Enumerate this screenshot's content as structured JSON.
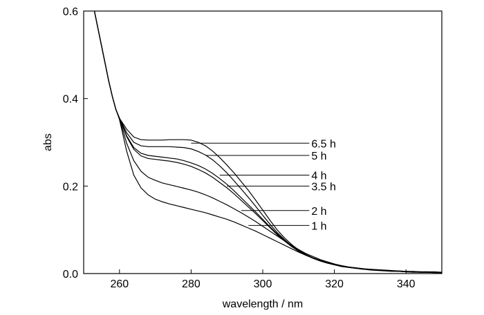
{
  "chart_data": {
    "type": "line",
    "title": "",
    "xlabel": "wavelength / nm",
    "ylabel": "abs",
    "xlim": [
      250,
      350
    ],
    "ylim": [
      0.0,
      0.6
    ],
    "xticks": [
      260,
      280,
      300,
      320,
      340
    ],
    "yticks": [
      0.0,
      0.2,
      0.4,
      0.6
    ],
    "xtick_labels": [
      "260",
      "280",
      "300",
      "320",
      "340"
    ],
    "ytick_labels": [
      "0.0",
      "0.2",
      "0.4",
      "0.6"
    ],
    "grid": false,
    "legend": "inline labels with leader lines",
    "series": [
      {
        "name": "6.5 h",
        "label_y": 0.298,
        "leader_x": 280,
        "x": [
          253,
          254,
          255,
          256,
          257,
          258,
          259,
          260,
          262,
          264,
          266,
          268,
          270,
          272,
          274,
          276,
          278,
          280,
          282,
          284,
          286,
          288,
          290,
          292,
          294,
          296,
          298,
          300,
          302,
          304,
          306,
          308,
          310,
          312,
          314,
          316,
          318,
          320,
          322,
          324,
          326,
          328,
          330,
          332,
          334,
          336,
          338,
          340,
          342,
          344,
          346,
          348,
          350
        ],
        "y": [
          0.6,
          0.56,
          0.52,
          0.48,
          0.44,
          0.405,
          0.375,
          0.355,
          0.33,
          0.312,
          0.306,
          0.305,
          0.305,
          0.305,
          0.306,
          0.306,
          0.306,
          0.305,
          0.3,
          0.292,
          0.28,
          0.265,
          0.248,
          0.23,
          0.21,
          0.19,
          0.168,
          0.145,
          0.122,
          0.1,
          0.082,
          0.067,
          0.054,
          0.044,
          0.036,
          0.03,
          0.025,
          0.021,
          0.018,
          0.015,
          0.013,
          0.011,
          0.01,
          0.009,
          0.008,
          0.007,
          0.006,
          0.005,
          0.005,
          0.004,
          0.004,
          0.004,
          0.003
        ]
      },
      {
        "name": "5 h",
        "label_y": 0.27,
        "leader_x": 284,
        "x": [
          253,
          254,
          255,
          256,
          257,
          258,
          259,
          260,
          262,
          264,
          266,
          268,
          270,
          272,
          274,
          276,
          278,
          280,
          282,
          284,
          286,
          288,
          290,
          292,
          294,
          296,
          298,
          300,
          302,
          304,
          306,
          308,
          310,
          312,
          314,
          316,
          318,
          320,
          322,
          324,
          326,
          328,
          330,
          332,
          334,
          336,
          338,
          340,
          342,
          344,
          346,
          348,
          350
        ],
        "y": [
          0.6,
          0.56,
          0.52,
          0.48,
          0.44,
          0.405,
          0.375,
          0.355,
          0.322,
          0.3,
          0.292,
          0.29,
          0.29,
          0.29,
          0.29,
          0.289,
          0.288,
          0.285,
          0.279,
          0.271,
          0.26,
          0.246,
          0.23,
          0.212,
          0.193,
          0.174,
          0.154,
          0.133,
          0.113,
          0.094,
          0.078,
          0.064,
          0.052,
          0.043,
          0.035,
          0.029,
          0.024,
          0.02,
          0.017,
          0.014,
          0.012,
          0.011,
          0.009,
          0.008,
          0.007,
          0.006,
          0.006,
          0.005,
          0.004,
          0.004,
          0.004,
          0.003,
          0.003
        ]
      },
      {
        "name": "4 h",
        "label_y": 0.225,
        "leader_x": 288,
        "x": [
          253,
          254,
          255,
          256,
          257,
          258,
          259,
          260,
          262,
          264,
          266,
          268,
          270,
          272,
          274,
          276,
          278,
          280,
          282,
          284,
          286,
          288,
          290,
          292,
          294,
          296,
          298,
          300,
          302,
          304,
          306,
          308,
          310,
          312,
          314,
          316,
          318,
          320,
          322,
          324,
          326,
          328,
          330,
          332,
          334,
          336,
          338,
          340,
          342,
          344,
          346,
          348,
          350
        ],
        "y": [
          0.6,
          0.56,
          0.52,
          0.48,
          0.44,
          0.405,
          0.375,
          0.355,
          0.315,
          0.288,
          0.275,
          0.27,
          0.268,
          0.266,
          0.264,
          0.262,
          0.258,
          0.253,
          0.247,
          0.239,
          0.229,
          0.217,
          0.204,
          0.189,
          0.173,
          0.157,
          0.141,
          0.124,
          0.107,
          0.091,
          0.076,
          0.063,
          0.052,
          0.043,
          0.035,
          0.029,
          0.024,
          0.02,
          0.017,
          0.014,
          0.012,
          0.01,
          0.009,
          0.008,
          0.007,
          0.006,
          0.005,
          0.005,
          0.004,
          0.004,
          0.003,
          0.003,
          0.003
        ]
      },
      {
        "name": "3.5 h",
        "label_y": 0.2,
        "leader_x": 290,
        "x": [
          253,
          254,
          255,
          256,
          257,
          258,
          259,
          260,
          262,
          264,
          266,
          268,
          270,
          272,
          274,
          276,
          278,
          280,
          282,
          284,
          286,
          288,
          290,
          292,
          294,
          296,
          298,
          300,
          302,
          304,
          306,
          308,
          310,
          312,
          314,
          316,
          318,
          320,
          322,
          324,
          326,
          328,
          330,
          332,
          334,
          336,
          338,
          340,
          342,
          344,
          346,
          348,
          350
        ],
        "y": [
          0.6,
          0.56,
          0.52,
          0.48,
          0.44,
          0.405,
          0.375,
          0.355,
          0.313,
          0.284,
          0.269,
          0.263,
          0.261,
          0.259,
          0.257,
          0.254,
          0.25,
          0.245,
          0.238,
          0.23,
          0.22,
          0.208,
          0.196,
          0.182,
          0.167,
          0.152,
          0.137,
          0.121,
          0.105,
          0.089,
          0.075,
          0.062,
          0.051,
          0.042,
          0.035,
          0.029,
          0.024,
          0.02,
          0.016,
          0.014,
          0.012,
          0.01,
          0.009,
          0.008,
          0.007,
          0.006,
          0.005,
          0.004,
          0.004,
          0.003,
          0.003,
          0.003,
          0.003
        ]
      },
      {
        "name": "2 h",
        "label_y": 0.144,
        "leader_x": 294,
        "x": [
          253,
          254,
          255,
          256,
          257,
          258,
          259,
          260,
          262,
          264,
          266,
          268,
          270,
          272,
          274,
          276,
          278,
          280,
          282,
          284,
          286,
          288,
          290,
          292,
          294,
          296,
          298,
          300,
          302,
          304,
          306,
          308,
          310,
          312,
          314,
          316,
          318,
          320,
          322,
          324,
          326,
          328,
          330,
          332,
          334,
          336,
          338,
          340,
          342,
          344,
          346,
          348,
          350
        ],
        "y": [
          0.6,
          0.56,
          0.52,
          0.48,
          0.44,
          0.405,
          0.375,
          0.355,
          0.298,
          0.258,
          0.234,
          0.22,
          0.213,
          0.207,
          0.203,
          0.199,
          0.195,
          0.191,
          0.186,
          0.18,
          0.173,
          0.165,
          0.157,
          0.148,
          0.139,
          0.129,
          0.119,
          0.108,
          0.097,
          0.086,
          0.075,
          0.065,
          0.055,
          0.046,
          0.039,
          0.032,
          0.027,
          0.022,
          0.018,
          0.015,
          0.013,
          0.011,
          0.009,
          0.008,
          0.007,
          0.006,
          0.005,
          0.004,
          0.004,
          0.003,
          0.003,
          0.003,
          0.002
        ]
      },
      {
        "name": "1 h",
        "label_y": 0.11,
        "leader_x": 296,
        "x": [
          253,
          254,
          255,
          256,
          257,
          258,
          259,
          260,
          262,
          264,
          266,
          268,
          270,
          272,
          274,
          276,
          278,
          280,
          282,
          284,
          286,
          288,
          290,
          292,
          294,
          296,
          298,
          300,
          302,
          304,
          306,
          308,
          310,
          312,
          314,
          316,
          318,
          320,
          322,
          324,
          326,
          328,
          330,
          332,
          334,
          336,
          338,
          340,
          342,
          344,
          346,
          348,
          350
        ],
        "y": [
          0.6,
          0.56,
          0.52,
          0.48,
          0.44,
          0.405,
          0.375,
          0.352,
          0.28,
          0.225,
          0.196,
          0.18,
          0.17,
          0.164,
          0.159,
          0.155,
          0.151,
          0.147,
          0.143,
          0.139,
          0.134,
          0.129,
          0.124,
          0.118,
          0.111,
          0.104,
          0.097,
          0.089,
          0.081,
          0.073,
          0.065,
          0.057,
          0.049,
          0.042,
          0.036,
          0.03,
          0.025,
          0.021,
          0.017,
          0.014,
          0.012,
          0.01,
          0.008,
          0.007,
          0.006,
          0.005,
          0.005,
          0.004,
          0.003,
          0.003,
          0.003,
          0.002,
          0.002
        ]
      }
    ],
    "label_x": 313
  }
}
